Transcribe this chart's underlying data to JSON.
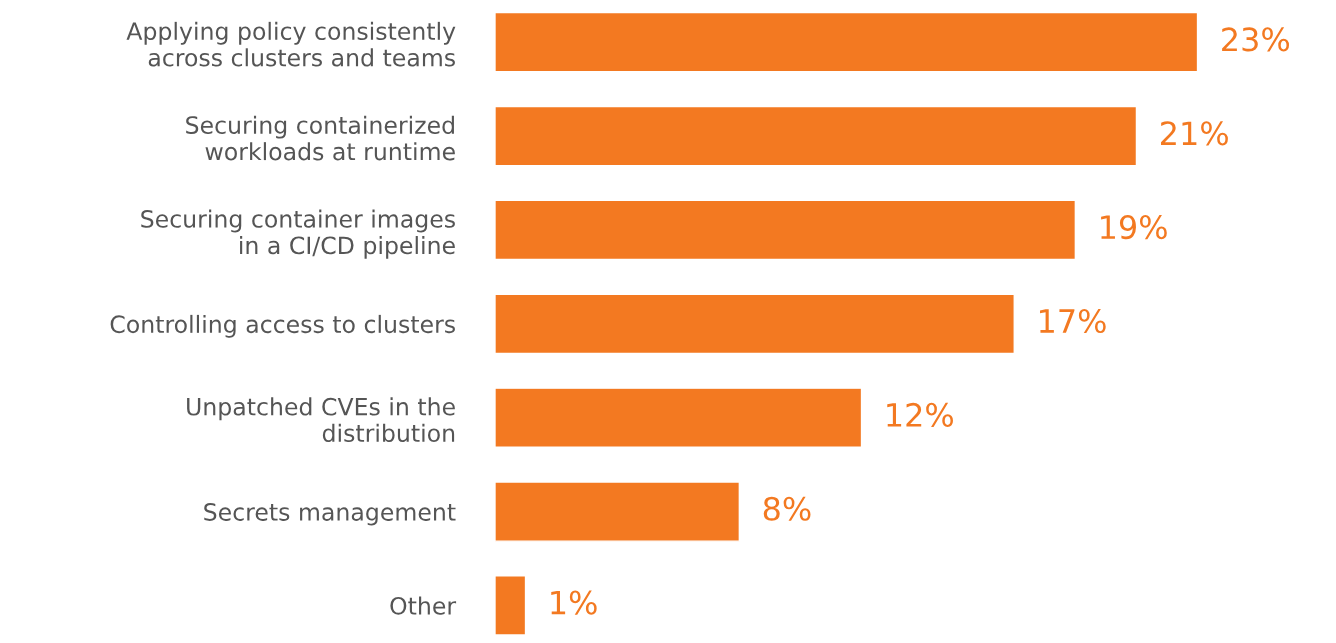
{
  "chart_data": {
    "type": "bar",
    "orientation": "horizontal",
    "categories": [
      "Applying policy consistently\nacross clusters and teams",
      "Securing containerized\nworkloads at runtime",
      "Securing container images\nin a CI/CD pipeline",
      "Controlling access to clusters",
      "Unpatched CVEs in the\ndistribution",
      "Secrets management",
      "Other"
    ],
    "values": [
      23,
      21,
      19,
      17,
      12,
      8,
      1
    ],
    "value_labels": [
      "23%",
      "21%",
      "19%",
      "17%",
      "12%",
      "8%",
      "1%"
    ],
    "color": "#f37921",
    "grid": false,
    "legend": false
  }
}
